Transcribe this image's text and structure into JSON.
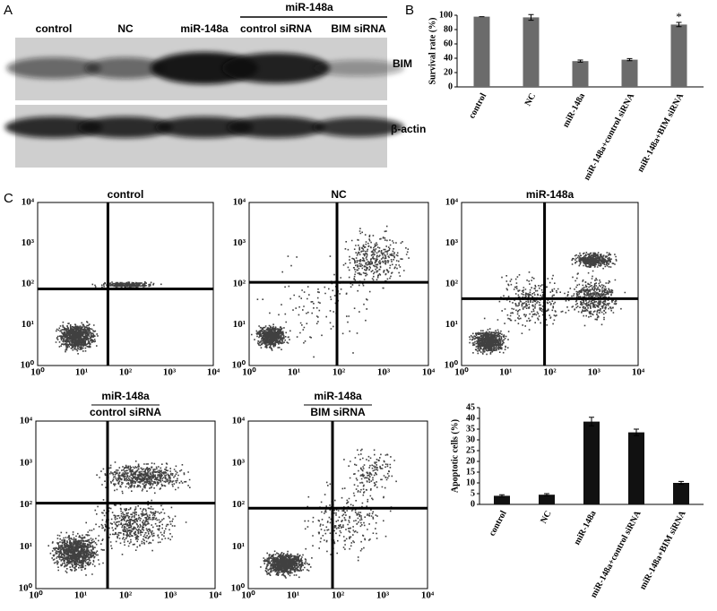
{
  "panel_labels": [
    "A",
    "B",
    "C"
  ],
  "blot": {
    "group_header": "miR-148a",
    "lanes": [
      "control",
      "NC",
      "miR-148a",
      "control siRNA",
      "BIM siRNA"
    ],
    "rows": [
      "BIM",
      "β-actin"
    ]
  },
  "flow": {
    "plots": [
      {
        "title": [
          "control"
        ]
      },
      {
        "title": [
          "NC"
        ]
      },
      {
        "title": [
          "miR-148a"
        ]
      },
      {
        "title": [
          "miR-148a",
          "control siRNA"
        ]
      },
      {
        "title": [
          "miR-148a",
          "BIM siRNA"
        ]
      }
    ],
    "xticks": [
      "10⁰",
      "10¹",
      "10²",
      "10³",
      "10⁴"
    ],
    "yticks": [
      "10⁴",
      "10³",
      "10²",
      "10¹",
      "10⁰"
    ]
  },
  "chart_data": [
    {
      "type": "bar",
      "ylabel": "Survival rate (%)",
      "categories": [
        "control",
        "NC",
        "miR-148a",
        "miR-148a+control siRNA",
        "miR-148a+BIM siRNA"
      ],
      "values": [
        98,
        97,
        36,
        38,
        87
      ],
      "errors": [
        0,
        4,
        1.5,
        1.5,
        3
      ],
      "color": "#6b6b6b",
      "ylim": [
        0,
        100
      ],
      "yticks": [
        0,
        20,
        40,
        60,
        80,
        100
      ],
      "annotations": [
        {
          "text": "*",
          "x": "miR-148a+BIM siRNA"
        }
      ]
    },
    {
      "type": "bar",
      "ylabel": "Apoptotic cells (%)",
      "categories": [
        "control",
        "NC",
        "miR-148a",
        "miR-148a+control siRNA",
        "miR-148a+BIM siRNA"
      ],
      "values": [
        4,
        4.5,
        38.5,
        33.5,
        10
      ],
      "errors": [
        0.5,
        0.5,
        2,
        1.5,
        0.7
      ],
      "color": "#111111",
      "ylim": [
        0,
        45
      ],
      "yticks": [
        0,
        5,
        10,
        15,
        20,
        25,
        30,
        35,
        40,
        45
      ]
    }
  ]
}
